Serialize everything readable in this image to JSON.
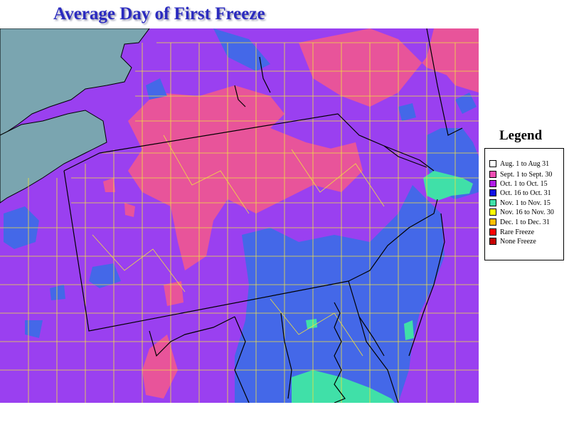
{
  "title": "Average Day of First Freeze",
  "legend": {
    "heading": "Legend",
    "items": [
      {
        "label": "Aug. 1 to Aug 31",
        "color": "#ffffff"
      },
      {
        "label": "Sept. 1 to Sept. 30",
        "color": "#ee4eb2"
      },
      {
        "label": "Oct. 1 to Oct. 15",
        "color": "#b01ee6"
      },
      {
        "label": "Oct. 16 to Oct. 31",
        "color": "#1010e6"
      },
      {
        "label": "Nov. 1 to Nov. 15",
        "color": "#3fe0a8"
      },
      {
        "label": "Nov. 16 to Nov. 30",
        "color": "#ffff00"
      },
      {
        "label": "Dec. 1 to Dec. 31",
        "color": "#ffbe00"
      },
      {
        "label": "Rare Freeze",
        "color": "#ff0000"
      },
      {
        "label": "None Freeze",
        "color": "#c80000"
      }
    ]
  },
  "map_colors": {
    "lake": "#7aa5b0",
    "sept": "#e8549a",
    "oct_early": "#9a40f0",
    "oct_late": "#4468e8",
    "nov_early": "#40e0a8",
    "county_lines": "#f0e040",
    "state_lines": "#000000"
  }
}
